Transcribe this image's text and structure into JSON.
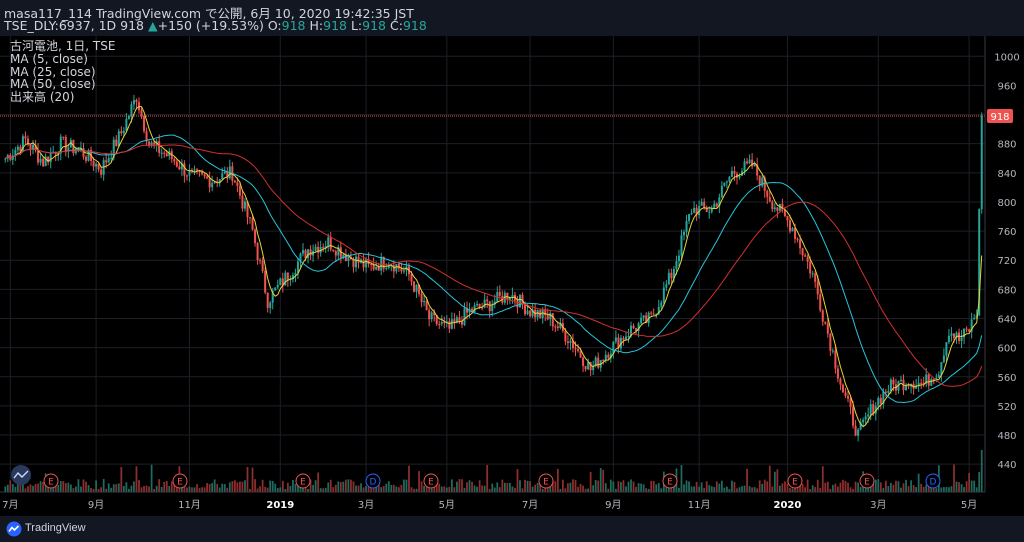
{
  "header": {
    "publish_line": "masa117_114 TradingView.com で公開, 6月 10, 2020 19:42:35 JST",
    "symbol": "TSE_DLY:6937, 1D",
    "last": "918",
    "change_arrow": "▲",
    "change": "+150 (+19.53%)",
    "o_label": "O:",
    "o_val": "918",
    "h_label": "H:",
    "h_val": "918",
    "l_label": "L:",
    "l_val": "918",
    "c_label": "C:",
    "c_val": "918"
  },
  "legend": {
    "title": "古河電池, 1日, TSE",
    "ma5": "MA (5, close)",
    "ma25": "MA (25, close)",
    "ma50": "MA (50, close)",
    "volume": "出来高 (20)"
  },
  "footer": {
    "brand": "TradingView"
  },
  "colors": {
    "background": "#000000",
    "up": "#26a69a",
    "down": "#ef5350",
    "ma5": "#e8d33a",
    "ma25": "#26c6da",
    "ma50": "#d32f2f",
    "price_line": "#ef5350"
  },
  "chart_data": {
    "type": "candlestick",
    "y_range": [
      410,
      1010
    ],
    "y_ticks": [
      440,
      480,
      520,
      560,
      600,
      640,
      680,
      720,
      760,
      800,
      840,
      880,
      920,
      960,
      1000
    ],
    "last_price_label": "918",
    "x_tick_labels": [
      "7月",
      "9月",
      "11月",
      "2019",
      "3月",
      "5月",
      "7月",
      "9月",
      "11月",
      "2020",
      "3月",
      "5月"
    ],
    "x_tick_bold": [
      false,
      false,
      false,
      true,
      false,
      false,
      false,
      false,
      false,
      true,
      false,
      false
    ],
    "events": [
      "E",
      "E",
      "E",
      "D",
      "E",
      "E",
      "E",
      "E",
      "E",
      "D",
      "E"
    ],
    "price_anchors": [
      [
        0,
        860
      ],
      [
        8,
        885
      ],
      [
        15,
        855
      ],
      [
        22,
        880
      ],
      [
        30,
        870
      ],
      [
        38,
        845
      ],
      [
        46,
        895
      ],
      [
        52,
        945
      ],
      [
        57,
        880
      ],
      [
        66,
        860
      ],
      [
        74,
        835
      ],
      [
        82,
        830
      ],
      [
        90,
        840
      ],
      [
        98,
        760
      ],
      [
        104,
        665
      ],
      [
        112,
        700
      ],
      [
        120,
        735
      ],
      [
        128,
        745
      ],
      [
        136,
        725
      ],
      [
        144,
        710
      ],
      [
        152,
        720
      ],
      [
        160,
        700
      ],
      [
        168,
        640
      ],
      [
        176,
        625
      ],
      [
        184,
        650
      ],
      [
        192,
        660
      ],
      [
        200,
        675
      ],
      [
        208,
        650
      ],
      [
        216,
        640
      ],
      [
        224,
        610
      ],
      [
        232,
        570
      ],
      [
        240,
        600
      ],
      [
        248,
        625
      ],
      [
        256,
        640
      ],
      [
        264,
        700
      ],
      [
        272,
        790
      ],
      [
        280,
        790
      ],
      [
        288,
        840
      ],
      [
        296,
        850
      ],
      [
        304,
        800
      ],
      [
        312,
        765
      ],
      [
        320,
        700
      ],
      [
        326,
        620
      ],
      [
        332,
        540
      ],
      [
        338,
        480
      ],
      [
        344,
        520
      ],
      [
        350,
        545
      ],
      [
        358,
        555
      ],
      [
        364,
        550
      ],
      [
        370,
        570
      ],
      [
        374,
        625
      ],
      [
        378,
        610
      ],
      [
        382,
        625
      ],
      [
        385,
        650
      ],
      [
        387,
        918
      ]
    ]
  }
}
